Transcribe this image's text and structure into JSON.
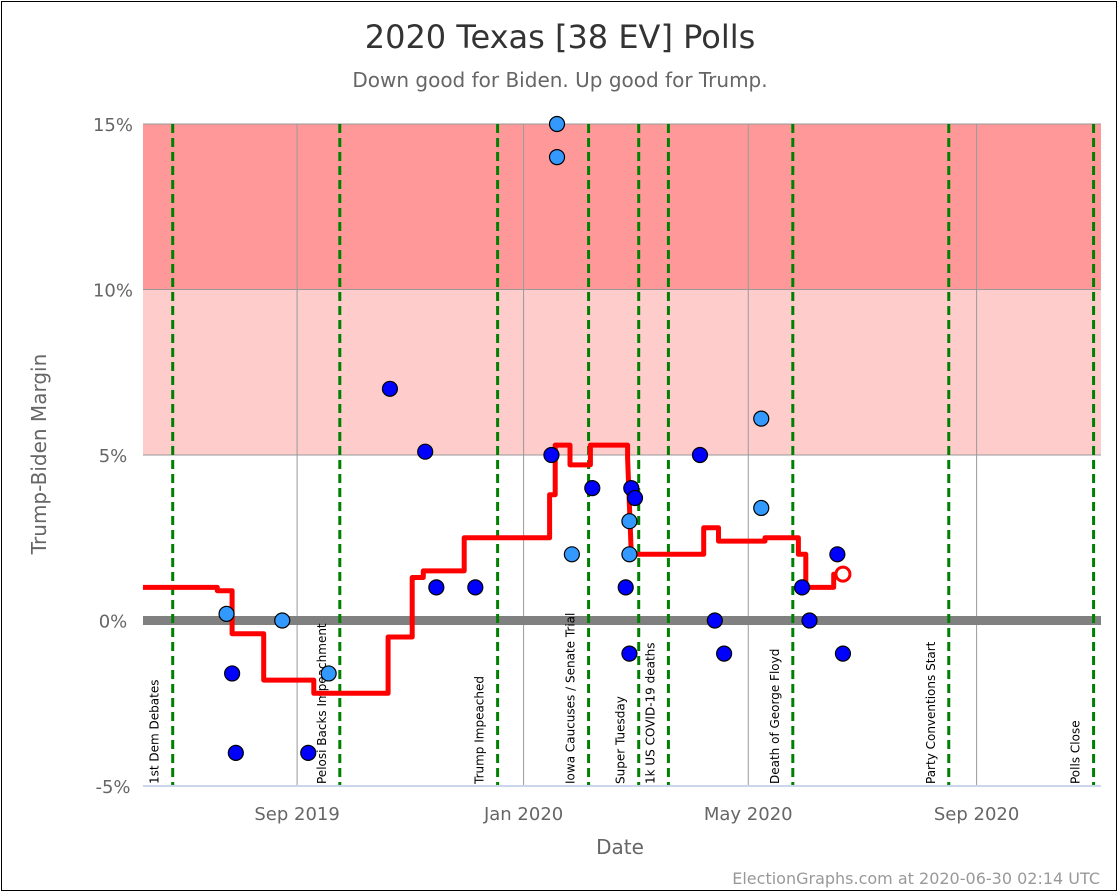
{
  "chart_data": {
    "type": "scatter",
    "title": "2020 Texas [38 EV] Polls",
    "subtitle": "Down good for Biden. Up good for Trump.",
    "xlabel": "Date",
    "ylabel": "Trump-Biden Margin",
    "credit": "ElectionGraphs.com at 2020-06-30 02:14 UTC",
    "xlim": [
      "2019-06-10",
      "2020-11-07"
    ],
    "ylim": [
      -5,
      15
    ],
    "x_ticks": [
      {
        "date": "2019-09-01",
        "label": "Sep 2019"
      },
      {
        "date": "2020-01-01",
        "label": "Jan 2020"
      },
      {
        "date": "2020-05-01",
        "label": "May 2020"
      },
      {
        "date": "2020-09-01",
        "label": "Sep 2020"
      }
    ],
    "y_ticks": [
      {
        "value": 15,
        "label": "15%"
      },
      {
        "value": 10,
        "label": "10%"
      },
      {
        "value": 5,
        "label": "5%"
      },
      {
        "value": 0,
        "label": "0%"
      },
      {
        "value": -5,
        "label": "-5%"
      }
    ],
    "bands": [
      {
        "from": 10,
        "to": 15,
        "color": "#ff9999"
      },
      {
        "from": 5,
        "to": 10,
        "color": "#ffcccc"
      }
    ],
    "events": [
      {
        "date": "2019-06-26",
        "label": "1st Dem Debates"
      },
      {
        "date": "2019-09-24",
        "label": "Pelosi Backs Impeachment"
      },
      {
        "date": "2019-12-18",
        "label": "Trump Impeached"
      },
      {
        "date": "2020-02-05",
        "label": "Iowa Caucuses / Senate Trial"
      },
      {
        "date": "2020-03-03",
        "label": "Super Tuesday"
      },
      {
        "date": "2020-03-19",
        "label": "1k US COVID-19 deaths"
      },
      {
        "date": "2020-05-25",
        "label": "Death of George Floyd"
      },
      {
        "date": "2020-08-17",
        "label": "Party Conventions Start"
      },
      {
        "date": "2020-11-03",
        "label": "Polls Close"
      }
    ],
    "series": [
      {
        "type": "line",
        "color": "#ff0000",
        "points": [
          [
            "2019-06-10",
            1
          ],
          [
            "2019-07-20",
            1
          ],
          [
            "2019-07-20",
            0.9
          ],
          [
            "2019-07-28",
            0.9
          ],
          [
            "2019-07-28",
            -0.4
          ],
          [
            "2019-08-14",
            -0.4
          ],
          [
            "2019-08-14",
            -1.8
          ],
          [
            "2019-09-10",
            -1.8
          ],
          [
            "2019-09-10",
            -2.2
          ],
          [
            "2019-10-20",
            -2.2
          ],
          [
            "2019-10-20",
            -0.5
          ],
          [
            "2019-11-02",
            -0.5
          ],
          [
            "2019-11-02",
            1.3
          ],
          [
            "2019-11-08",
            1.3
          ],
          [
            "2019-11-08",
            1.5
          ],
          [
            "2019-11-30",
            1.5
          ],
          [
            "2019-11-30",
            2.5
          ],
          [
            "2020-01-15",
            2.5
          ],
          [
            "2020-01-15",
            3.8
          ],
          [
            "2020-01-18",
            3.8
          ],
          [
            "2020-01-18",
            5.3
          ],
          [
            "2020-01-26",
            5.3
          ],
          [
            "2020-01-26",
            4.7
          ],
          [
            "2020-02-06",
            4.7
          ],
          [
            "2020-02-06",
            5.3
          ],
          [
            "2020-02-26",
            5.3
          ],
          [
            "2020-02-26",
            4.9
          ],
          [
            "2020-02-28",
            2.0
          ],
          [
            "2020-04-07",
            2.0
          ],
          [
            "2020-04-07",
            2.8
          ],
          [
            "2020-04-15",
            2.8
          ],
          [
            "2020-04-15",
            2.4
          ],
          [
            "2020-05-10",
            2.4
          ],
          [
            "2020-05-10",
            2.5
          ],
          [
            "2020-05-28",
            2.5
          ],
          [
            "2020-05-28",
            2.0
          ],
          [
            "2020-06-01",
            2.0
          ],
          [
            "2020-06-01",
            1.0
          ],
          [
            "2020-06-16",
            1.0
          ],
          [
            "2020-06-16",
            1.4
          ],
          [
            "2020-06-21",
            1.4
          ]
        ],
        "end_marker": [
          "2020-06-21",
          1.4
        ]
      },
      {
        "type": "scatter",
        "points": [
          {
            "date": "2019-07-25",
            "margin": 0.2,
            "color": "#3399ff"
          },
          {
            "date": "2019-07-28",
            "margin": -1.6,
            "color": "#0000ff"
          },
          {
            "date": "2019-07-30",
            "margin": -4.0,
            "color": "#0000ff"
          },
          {
            "date": "2019-08-24",
            "margin": 0.0,
            "color": "#3399ff"
          },
          {
            "date": "2019-09-07",
            "margin": -4.0,
            "color": "#0000ff"
          },
          {
            "date": "2019-09-18",
            "margin": -1.6,
            "color": "#3399ff"
          },
          {
            "date": "2019-10-21",
            "margin": 7.0,
            "color": "#0000ff"
          },
          {
            "date": "2019-11-09",
            "margin": 5.1,
            "color": "#0000ff"
          },
          {
            "date": "2019-11-15",
            "margin": 1.0,
            "color": "#0000ff"
          },
          {
            "date": "2019-12-06",
            "margin": 1.0,
            "color": "#0000ff"
          },
          {
            "date": "2020-01-16",
            "margin": 5.0,
            "color": "#0000ff"
          },
          {
            "date": "2020-01-19",
            "margin": 15.0,
            "color": "#3399ff"
          },
          {
            "date": "2020-01-19",
            "margin": 14.0,
            "color": "#3399ff"
          },
          {
            "date": "2020-01-27",
            "margin": 2.0,
            "color": "#3399ff"
          },
          {
            "date": "2020-02-07",
            "margin": 4.0,
            "color": "#0000ff"
          },
          {
            "date": "2020-02-25",
            "margin": 1.0,
            "color": "#0000ff"
          },
          {
            "date": "2020-02-27",
            "margin": -1.0,
            "color": "#0000ff"
          },
          {
            "date": "2020-02-27",
            "margin": 3.0,
            "color": "#3399ff"
          },
          {
            "date": "2020-02-27",
            "margin": 2.0,
            "color": "#3399ff"
          },
          {
            "date": "2020-02-28",
            "margin": 4.0,
            "color": "#0000ff"
          },
          {
            "date": "2020-03-01",
            "margin": 3.7,
            "color": "#0000ff"
          },
          {
            "date": "2020-04-05",
            "margin": 5.0,
            "color": "#0000ff"
          },
          {
            "date": "2020-04-13",
            "margin": 0.0,
            "color": "#0000ff"
          },
          {
            "date": "2020-04-18",
            "margin": -1.0,
            "color": "#0000ff"
          },
          {
            "date": "2020-05-08",
            "margin": 6.1,
            "color": "#3399ff"
          },
          {
            "date": "2020-05-08",
            "margin": 3.4,
            "color": "#3399ff"
          },
          {
            "date": "2020-05-30",
            "margin": 1.0,
            "color": "#0000ff"
          },
          {
            "date": "2020-06-03",
            "margin": 0.0,
            "color": "#0000ff"
          },
          {
            "date": "2020-06-18",
            "margin": 2.0,
            "color": "#0000ff"
          },
          {
            "date": "2020-06-21",
            "margin": -1.0,
            "color": "#0000ff"
          }
        ]
      }
    ]
  }
}
